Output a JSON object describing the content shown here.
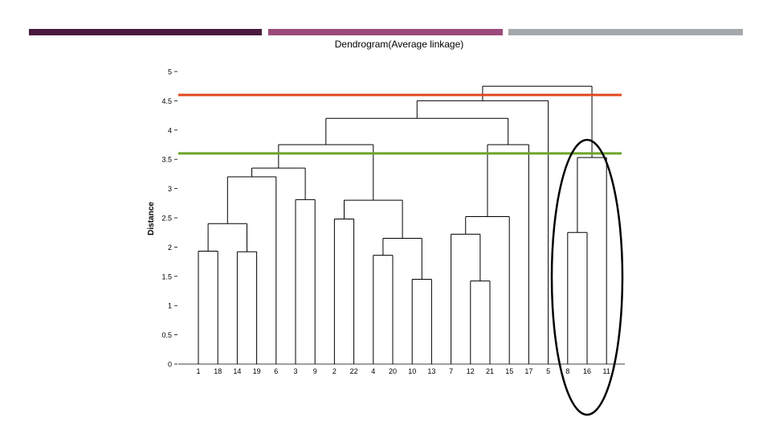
{
  "colors": {
    "stripe1": "#4a1a3c",
    "stripe2": "#9b4a7c",
    "stripe3": "#a5a8ab",
    "red_line": "#e2481f",
    "green_line": "#6fa32a",
    "ink": "#000000"
  },
  "chart_data": {
    "type": "dendrogram",
    "title": "Dendrogram(Average linkage)",
    "ylabel": "Distance",
    "ylim": [
      0,
      5
    ],
    "y_ticks": [
      0,
      0.5,
      1,
      1.5,
      2,
      2.5,
      3,
      3.5,
      4,
      4.5,
      5
    ],
    "y_tick_labels": [
      "0",
      "0.5",
      "1",
      "1.5",
      "2",
      "2.5",
      "3",
      "3.5",
      "4",
      "4.5",
      "5"
    ],
    "leaves": [
      "1",
      "18",
      "14",
      "19",
      "6",
      "3",
      "9",
      "2",
      "22",
      "4",
      "20",
      "10",
      "13",
      "7",
      "12",
      "21",
      "15",
      "17",
      "5",
      "8",
      "16",
      "11"
    ],
    "merges": [
      {
        "children": [
          "1",
          "18"
        ],
        "height": 1.93
      },
      {
        "children": [
          "14",
          "19"
        ],
        "height": 1.92
      },
      {
        "children": [
          "1+18",
          "14+19"
        ],
        "height": 2.4
      },
      {
        "children": [
          "1..19",
          "6"
        ],
        "height": 3.2
      },
      {
        "children": [
          "3",
          "9"
        ],
        "height": 2.81
      },
      {
        "children": [
          "1..6",
          "3+9"
        ],
        "height": 3.35
      },
      {
        "children": [
          "2",
          "22"
        ],
        "height": 2.48
      },
      {
        "children": [
          "4",
          "20"
        ],
        "height": 1.86
      },
      {
        "children": [
          "10",
          "13"
        ],
        "height": 1.45
      },
      {
        "children": [
          "4+20",
          "10+13"
        ],
        "height": 2.15
      },
      {
        "children": [
          "2+22",
          "4..13"
        ],
        "height": 2.8
      },
      {
        "children": [
          "1..9",
          "2..13"
        ],
        "height": 3.75
      },
      {
        "children": [
          "12",
          "21"
        ],
        "height": 1.42
      },
      {
        "children": [
          "7",
          "12+21"
        ],
        "height": 2.22
      },
      {
        "children": [
          "7..21",
          "15"
        ],
        "height": 2.52
      },
      {
        "children": [
          "7..15",
          "17"
        ],
        "height": 3.75
      },
      {
        "children": [
          "1..13",
          "7..17"
        ],
        "height": 4.2
      },
      {
        "children": [
          "1..17",
          "5"
        ],
        "height": 4.5
      },
      {
        "children": [
          "8",
          "16"
        ],
        "height": 2.25
      },
      {
        "children": [
          "8+16",
          "11"
        ],
        "height": 3.53
      },
      {
        "children": [
          "1..5",
          "8..11"
        ],
        "height": 4.75
      }
    ],
    "cut_lines": [
      {
        "height": 4.6,
        "color": "#e2481f"
      },
      {
        "height": 3.6,
        "color": "#6fa32a"
      }
    ],
    "highlight": {
      "leaves": [
        "8",
        "16",
        "11"
      ],
      "shape": "ellipse"
    }
  }
}
